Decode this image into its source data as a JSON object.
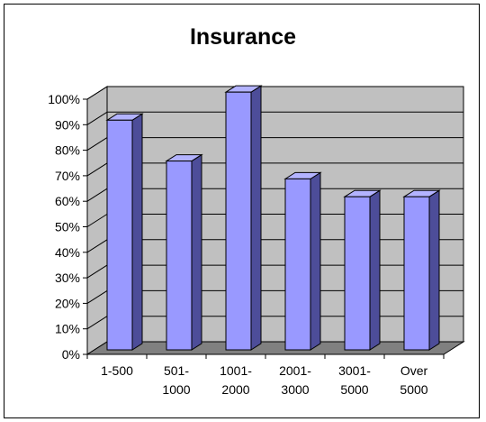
{
  "chart_data": {
    "type": "bar",
    "title": "Insurance",
    "categories": [
      [
        "1-500"
      ],
      [
        "501-",
        "1000"
      ],
      [
        "1001-",
        "2000"
      ],
      [
        "2001-",
        "3000"
      ],
      [
        "3001-",
        "5000"
      ],
      [
        "Over",
        "5000"
      ]
    ],
    "values": [
      90,
      74,
      101,
      67,
      60,
      60
    ],
    "yticks": [
      "0%",
      "10%",
      "20%",
      "30%",
      "40%",
      "50%",
      "60%",
      "70%",
      "80%",
      "90%",
      "100%"
    ],
    "ylim": [
      0,
      100
    ],
    "grid": true,
    "legend": "none",
    "colors": {
      "bar_front": "#9999FF",
      "bar_top": "#B3B3FF",
      "bar_side": "#4D4D99",
      "wall": "#C0C0C0",
      "floor": "#808080",
      "gridline": "#000000"
    }
  }
}
